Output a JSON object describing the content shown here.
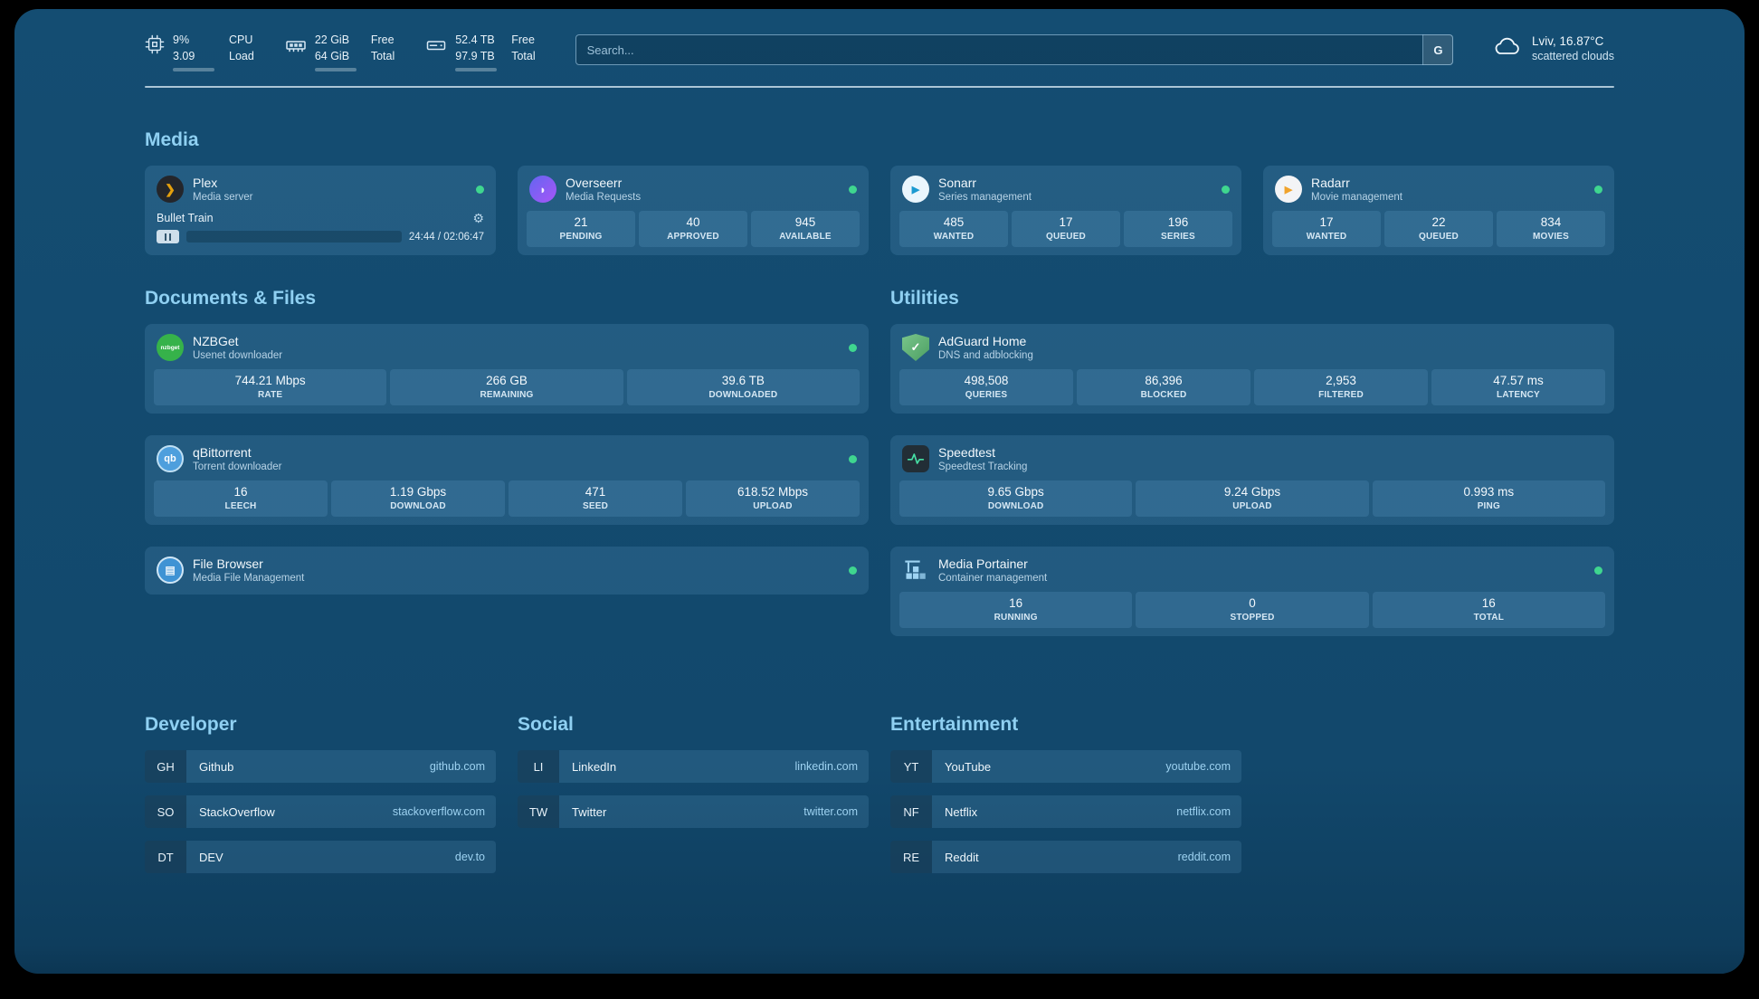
{
  "colors": {
    "background": "#12486c",
    "card_tint": "#1d567c",
    "heading": "#8fd0f2",
    "status_ok": "#3fd68f",
    "url_link": "#9dd2f1",
    "plex_accent": "#e5a00d"
  },
  "icons": {
    "plex_glyph": "❯",
    "overseerr_glyph": "◗",
    "sonarr_glyph": "▶",
    "radarr_glyph": "▶",
    "nzbget_glyph": "nzbget",
    "qbittorrent_glyph": "qb",
    "filebrowser_glyph": "▤",
    "adguard_glyph": "✓",
    "gear_glyph": "⚙"
  },
  "topbar": {
    "resources": [
      {
        "id": "cpu",
        "value1": "9%",
        "value2": "3.09",
        "label1": "CPU",
        "label2": "Load",
        "progress": 9
      },
      {
        "id": "memory",
        "value1": "22 GiB",
        "value2": "64 GiB",
        "label1": "Free",
        "label2": "Total",
        "progress": 66
      },
      {
        "id": "disk",
        "value1": "52.4 TB",
        "value2": "97.9 TB",
        "label1": "Free",
        "label2": "Total",
        "progress": 46
      }
    ],
    "search": {
      "placeholder": "Search...",
      "provider_button": "G"
    },
    "weather": {
      "location": "Lviv, 16.87°C",
      "condition": "scattered clouds"
    }
  },
  "media": {
    "title": "Media",
    "plex": {
      "name": "Plex",
      "subtitle": "Media server",
      "now_playing": "Bullet Train",
      "time_display": "24:44 / 02:06:47",
      "progress": 19
    },
    "overseerr": {
      "name": "Overseerr",
      "subtitle": "Media Requests",
      "stats": [
        {
          "value": "21",
          "label": "PENDING"
        },
        {
          "value": "40",
          "label": "APPROVED"
        },
        {
          "value": "945",
          "label": "AVAILABLE"
        }
      ]
    },
    "sonarr": {
      "name": "Sonarr",
      "subtitle": "Series management",
      "stats": [
        {
          "value": "485",
          "label": "WANTED"
        },
        {
          "value": "17",
          "label": "QUEUED"
        },
        {
          "value": "196",
          "label": "SERIES"
        }
      ]
    },
    "radarr": {
      "name": "Radarr",
      "subtitle": "Movie management",
      "stats": [
        {
          "value": "17",
          "label": "WANTED"
        },
        {
          "value": "22",
          "label": "QUEUED"
        },
        {
          "value": "834",
          "label": "MOVIES"
        }
      ]
    }
  },
  "documents": {
    "title": "Documents & Files",
    "nzbget": {
      "name": "NZBGet",
      "subtitle": "Usenet downloader",
      "stats": [
        {
          "value": "744.21 Mbps",
          "label": "RATE"
        },
        {
          "value": "266 GB",
          "label": "REMAINING"
        },
        {
          "value": "39.6 TB",
          "label": "DOWNLOADED"
        }
      ]
    },
    "qbittorrent": {
      "name": "qBittorrent",
      "subtitle": "Torrent downloader",
      "stats": [
        {
          "value": "16",
          "label": "LEECH"
        },
        {
          "value": "1.19 Gbps",
          "label": "DOWNLOAD"
        },
        {
          "value": "471",
          "label": "SEED"
        },
        {
          "value": "618.52 Mbps",
          "label": "UPLOAD"
        }
      ]
    },
    "filebrowser": {
      "name": "File Browser",
      "subtitle": "Media File Management"
    }
  },
  "utilities": {
    "title": "Utilities",
    "adguard": {
      "name": "AdGuard Home",
      "subtitle": "DNS and adblocking",
      "stats": [
        {
          "value": "498,508",
          "label": "QUERIES"
        },
        {
          "value": "86,396",
          "label": "BLOCKED"
        },
        {
          "value": "2,953",
          "label": "FILTERED"
        },
        {
          "value": "47.57 ms",
          "label": "LATENCY"
        }
      ]
    },
    "speedtest": {
      "name": "Speedtest",
      "subtitle": "Speedtest Tracking",
      "stats": [
        {
          "value": "9.65 Gbps",
          "label": "DOWNLOAD"
        },
        {
          "value": "9.24 Gbps",
          "label": "UPLOAD"
        },
        {
          "value": "0.993 ms",
          "label": "PING"
        }
      ]
    },
    "portainer": {
      "name": "Media Portainer",
      "subtitle": "Container management",
      "stats": [
        {
          "value": "16",
          "label": "RUNNING"
        },
        {
          "value": "0",
          "label": "STOPPED"
        },
        {
          "value": "16",
          "label": "TOTAL"
        }
      ]
    }
  },
  "bookmarks": {
    "groups": [
      {
        "title": "Developer",
        "items": [
          {
            "abbr": "GH",
            "name": "Github",
            "url": "github.com"
          },
          {
            "abbr": "SO",
            "name": "StackOverflow",
            "url": "stackoverflow.com"
          },
          {
            "abbr": "DT",
            "name": "DEV",
            "url": "dev.to"
          }
        ]
      },
      {
        "title": "Social",
        "items": [
          {
            "abbr": "LI",
            "name": "LinkedIn",
            "url": "linkedin.com"
          },
          {
            "abbr": "TW",
            "name": "Twitter",
            "url": "twitter.com"
          }
        ]
      },
      {
        "title": "Entertainment",
        "items": [
          {
            "abbr": "YT",
            "name": "YouTube",
            "url": "youtube.com"
          },
          {
            "abbr": "NF",
            "name": "Netflix",
            "url": "netflix.com"
          },
          {
            "abbr": "RE",
            "name": "Reddit",
            "url": "reddit.com"
          }
        ]
      }
    ]
  }
}
